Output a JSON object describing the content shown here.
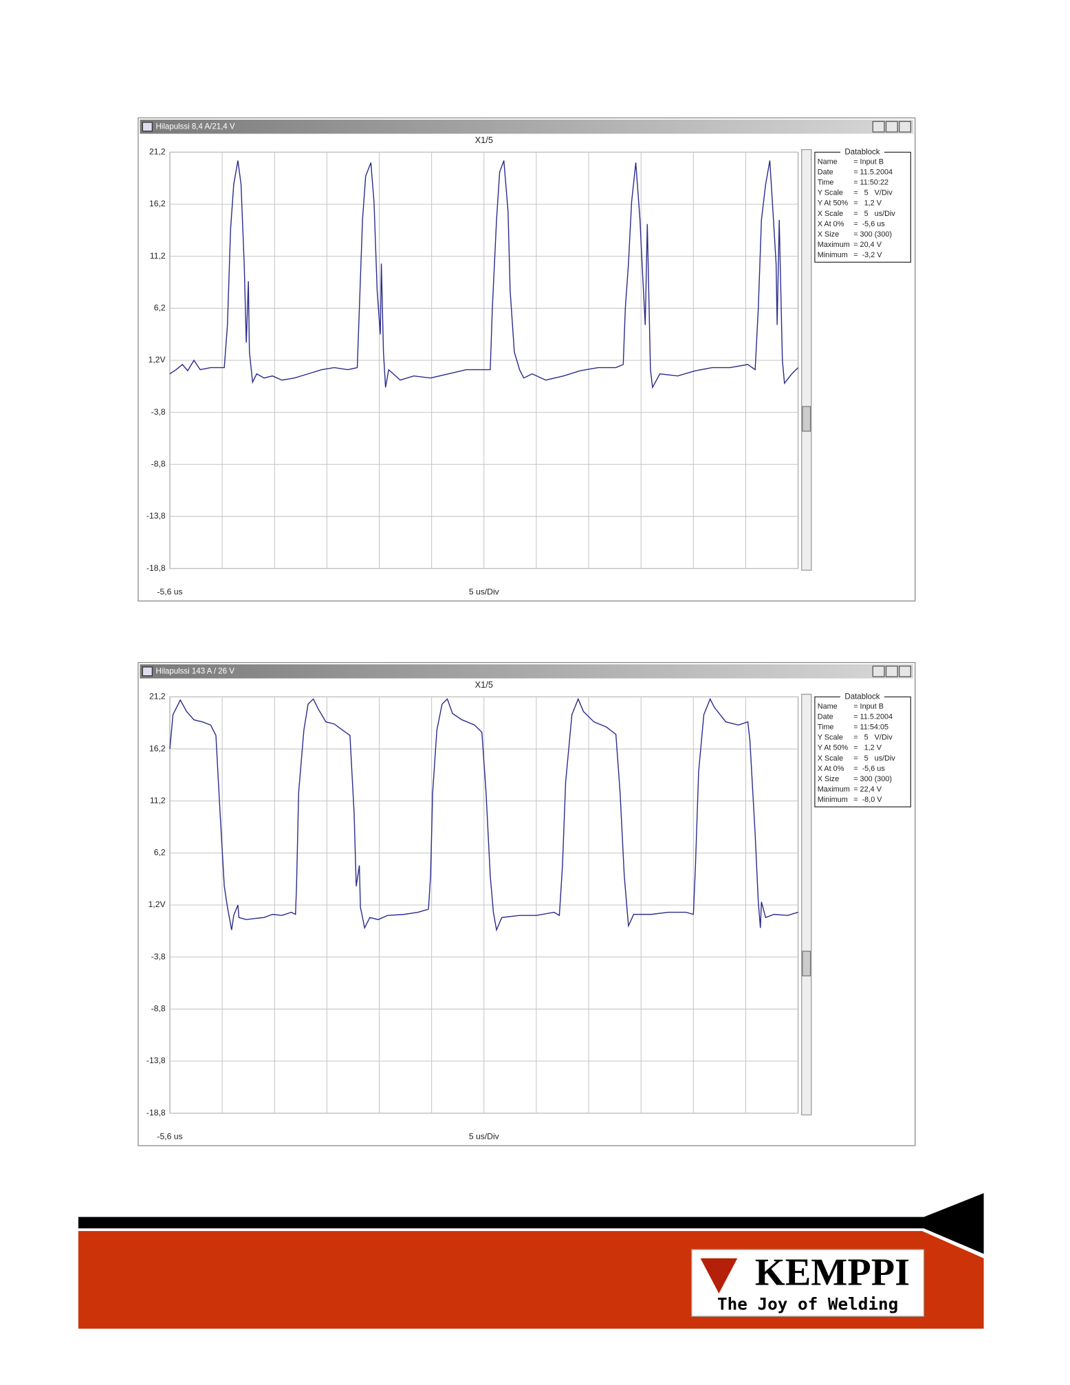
{
  "chart_data": [
    {
      "type": "line",
      "window_title": "Hilapulssi 8,4 A/21,4 V",
      "title": "X1/5",
      "x_start_label": "-5,6 us",
      "xlabel": "5 us/Div",
      "xlim": [
        -5.6,
        54.4
      ],
      "ylim": [
        -18.8,
        21.2
      ],
      "yticks": [
        {
          "value": 21.2,
          "label": "21,2"
        },
        {
          "value": 16.2,
          "label": "16,2"
        },
        {
          "value": 11.2,
          "label": "11,2"
        },
        {
          "value": 6.2,
          "label": "6,2"
        },
        {
          "value": 1.2,
          "label": "1,2V"
        },
        {
          "value": -3.8,
          "label": "-3,8"
        },
        {
          "value": -8.8,
          "label": "-8,8"
        },
        {
          "value": -13.8,
          "label": "-13,8"
        },
        {
          "value": -18.8,
          "label": "-18,8"
        }
      ],
      "grid": true,
      "series": [
        {
          "color": "#2b2b8c",
          "x": [
            -5.6,
            -5.0,
            -4.4,
            -3.9,
            -3.3,
            -2.7,
            -1.7,
            -0.4,
            -0.1,
            0.2,
            0.5,
            0.9,
            1.2,
            1.5,
            1.7,
            1.9,
            2.0,
            2.3,
            2.7,
            3.4,
            4.2,
            5.1,
            6.3,
            7.6,
            8.9,
            10.1,
            11.4,
            12.3,
            12.5,
            12.8,
            13.1,
            13.6,
            13.9,
            14.2,
            14.5,
            14.6,
            14.8,
            15.0,
            15.3,
            16.4,
            17.7,
            19.3,
            21.0,
            22.7,
            24.2,
            25.0,
            25.2,
            25.6,
            25.9,
            26.3,
            26.7,
            26.9,
            27.3,
            27.8,
            28.2,
            29.0,
            30.3,
            32.0,
            33.6,
            35.3,
            37.0,
            37.7,
            37.9,
            38.2,
            38.5,
            38.9,
            39.3,
            39.5,
            39.8,
            40.0,
            40.3,
            40.5,
            41.2,
            42.9,
            44.6,
            46.2,
            47.9,
            49.6,
            50.3,
            50.6,
            50.9,
            51.3,
            51.7,
            52.0,
            52.3,
            52.4,
            52.6,
            52.9,
            53.1,
            53.8,
            54.4
          ],
          "values": [
            -0.1,
            0.3,
            0.8,
            0.2,
            1.2,
            0.3,
            0.5,
            0.5,
            4.6,
            13.8,
            18.1,
            20.4,
            18.1,
            10.5,
            2.9,
            8.8,
            2.0,
            -0.9,
            -0.1,
            -0.5,
            -0.3,
            -0.7,
            -0.5,
            -0.1,
            0.3,
            0.5,
            0.3,
            0.5,
            6.2,
            14.7,
            18.9,
            20.2,
            16.4,
            7.9,
            3.7,
            10.5,
            2.0,
            -1.4,
            0.3,
            -0.7,
            -0.3,
            -0.5,
            -0.1,
            0.3,
            0.3,
            0.3,
            6.2,
            14.7,
            19.3,
            20.4,
            15.5,
            7.9,
            2.0,
            0.3,
            -0.5,
            -0.1,
            -0.7,
            -0.3,
            0.2,
            0.5,
            0.5,
            0.8,
            6.2,
            10.5,
            16.4,
            20.2,
            14.7,
            10.5,
            4.6,
            14.3,
            0.3,
            -1.4,
            -0.1,
            -0.3,
            0.2,
            0.5,
            0.5,
            0.8,
            0.3,
            6.2,
            14.7,
            18.1,
            20.4,
            15.5,
            10.5,
            4.6,
            14.7,
            1.2,
            -1.0,
            -0.1,
            0.5
          ]
        }
      ],
      "datablock": {
        "title": "Datablock",
        "rows": [
          [
            "Name",
            "= Input B"
          ],
          [
            "Date",
            "= 11.5.2004"
          ],
          [
            "Time",
            "= 11:50:22"
          ],
          [
            "Y Scale",
            "=   5   V/Div"
          ],
          [
            "Y At 50%",
            "=   1,2 V"
          ],
          [
            "X Scale",
            "=   5   us/Div"
          ],
          [
            "X At 0%",
            "=  -5,6 us"
          ],
          [
            "X Size",
            "= 300 (300)"
          ],
          [
            "Maximum",
            "= 20,4 V"
          ],
          [
            "Minimum",
            "=  -3,2 V"
          ]
        ]
      }
    },
    {
      "type": "line",
      "window_title": "Hilapulssi 143 A / 26 V",
      "title": "X1/5",
      "x_start_label": "-5,6 us",
      "xlabel": "5 us/Div",
      "xlim": [
        -5.6,
        54.4
      ],
      "ylim": [
        -18.8,
        21.2
      ],
      "yticks": [
        {
          "value": 21.2,
          "label": "21,2"
        },
        {
          "value": 16.2,
          "label": "16,2"
        },
        {
          "value": 11.2,
          "label": "11,2"
        },
        {
          "value": 6.2,
          "label": "6,2"
        },
        {
          "value": 1.2,
          "label": "1,2V"
        },
        {
          "value": -3.8,
          "label": "-3,8"
        },
        {
          "value": -8.8,
          "label": "-8,8"
        },
        {
          "value": -13.8,
          "label": "-13,8"
        },
        {
          "value": -18.8,
          "label": "-18,8"
        }
      ],
      "grid": true,
      "series": [
        {
          "color": "#2b2b8c",
          "x": [
            -5.6,
            -5.3,
            -4.6,
            -4.0,
            -3.3,
            -2.5,
            -1.7,
            -1.2,
            -0.8,
            -0.4,
            -0.1,
            0.3,
            0.5,
            0.9,
            1.0,
            1.7,
            2.5,
            3.4,
            4.2,
            5.1,
            6.0,
            6.4,
            6.5,
            6.7,
            7.2,
            7.6,
            8.1,
            8.6,
            9.3,
            10.1,
            10.9,
            11.6,
            12.0,
            12.2,
            12.5,
            12.6,
            13.0,
            13.5,
            14.3,
            15.2,
            16.8,
            18.1,
            19.1,
            19.3,
            19.5,
            19.9,
            20.4,
            20.9,
            21.4,
            22.3,
            23.5,
            24.2,
            24.6,
            25.0,
            25.3,
            25.6,
            26.1,
            27.8,
            29.4,
            31.1,
            31.6,
            31.9,
            32.2,
            32.8,
            33.4,
            33.9,
            34.9,
            36.1,
            37.0,
            37.4,
            37.8,
            38.2,
            38.7,
            40.4,
            42.0,
            43.7,
            44.4,
            44.6,
            44.9,
            45.4,
            46.0,
            46.4,
            47.5,
            48.7,
            49.6,
            49.8,
            50.3,
            50.6,
            50.8,
            50.9,
            51.3,
            52.1,
            53.4,
            54.4
          ],
          "values": [
            16.2,
            19.5,
            20.9,
            19.8,
            19.0,
            18.8,
            18.5,
            17.5,
            10.0,
            3.0,
            1.0,
            -1.2,
            0.2,
            1.2,
            0.0,
            -0.2,
            -0.1,
            0.0,
            0.3,
            0.2,
            0.5,
            0.3,
            3.0,
            12.0,
            18.0,
            20.5,
            21.0,
            20.0,
            18.8,
            18.6,
            18.0,
            17.5,
            10.0,
            3.0,
            5.0,
            1.0,
            -1.0,
            0.0,
            -0.2,
            0.2,
            0.3,
            0.5,
            0.8,
            4.0,
            12.0,
            18.0,
            20.5,
            21.0,
            19.6,
            19.0,
            18.5,
            17.8,
            12.0,
            4.0,
            0.5,
            -1.2,
            0.0,
            0.2,
            0.2,
            0.5,
            0.2,
            5.0,
            13.0,
            19.5,
            21.0,
            19.8,
            18.8,
            18.3,
            17.6,
            12.0,
            4.0,
            -0.8,
            0.3,
            0.3,
            0.5,
            0.5,
            0.3,
            5.0,
            14.0,
            19.5,
            21.0,
            20.2,
            18.8,
            18.5,
            18.8,
            17.0,
            8.0,
            1.5,
            -1.0,
            1.5,
            0.0,
            0.3,
            0.2,
            0.5
          ]
        }
      ],
      "datablock": {
        "title": "Datablock",
        "rows": [
          [
            "Name",
            "= Input B"
          ],
          [
            "Date",
            "= 11.5.2004"
          ],
          [
            "Time",
            "= 11:54:05"
          ],
          [
            "Y Scale",
            "=   5   V/Div"
          ],
          [
            "Y At 50%",
            "=   1,2 V"
          ],
          [
            "X Scale",
            "=   5   us/Div"
          ],
          [
            "X At 0%",
            "=  -5,6 us"
          ],
          [
            "X Size",
            "= 300 (300)"
          ],
          [
            "Maximum",
            "= 22,4 V"
          ],
          [
            "Minimum",
            "=  -8,0 V"
          ]
        ]
      }
    }
  ],
  "footer": {
    "brand": "KEMPPI",
    "tagline": "The Joy of Welding"
  }
}
